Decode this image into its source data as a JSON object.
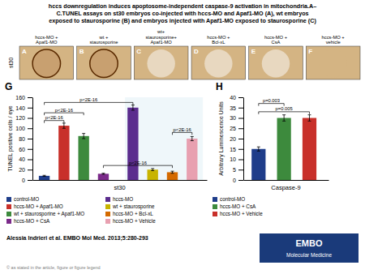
{
  "title": "hccs downregulation induces apoptosome-independent caspase-9 activation in mitochondria.A–\nC.TUNEL assays on st30 embryos co-injected with hccs-MO and Apaf1-MO (A), wt embryos\nexposed to staurosporine (B) and embryos injected with Apaf1-MO exposed to staurosporine (C)",
  "panels": [
    {
      "label": "A",
      "caption": "hccs-MO +\nApaf1-MO"
    },
    {
      "label": "B",
      "caption": "wt +\nstaurosporine"
    },
    {
      "label": "C",
      "caption": "wt+\nstaurosporine+\nApaf1-MO"
    },
    {
      "label": "D",
      "caption": "hccs-MO +\nBcl-xL"
    },
    {
      "label": "E",
      "caption": "hccs-MO +\nCsA"
    },
    {
      "label": "F",
      "caption": "hccs-MO +\nvehicle"
    }
  ],
  "row_label": "st30",
  "citation": "Alessia Indrieri et al. EMBO Mol Med. 2013;5:280-293",
  "footer": "© as stated in the article, figure or figure legend",
  "logo": [
    "EMBO",
    "Molecular Medicine"
  ],
  "chart_data": [
    {
      "type": "bar",
      "title": "G",
      "categories": [
        "control-MO",
        "hccs-MO + Apaf1-MO",
        "wt + staurosporine + Apaf1-MO",
        "hccs-MO + CsA",
        "hccs-MO",
        "wt + staurosporine",
        "hccs-MO + Bcl-xL",
        "hccs-MO + Vehicle"
      ],
      "values": [
        8,
        105,
        85,
        12,
        140,
        20,
        15,
        80
      ],
      "errors": [
        1,
        5,
        5,
        1,
        5,
        2,
        2,
        4
      ],
      "colors": [
        "#1f3d8a",
        "#c8302a",
        "#3d8a3d",
        "#7b2a8a",
        "#5b2d8e",
        "#c8b400",
        "#d46a00",
        "#e8a0b0"
      ],
      "xlabel": "st30",
      "ylabel": "TUNEL positive cells / eye",
      "ylim": [
        0,
        160
      ],
      "yticks": [
        0,
        20,
        40,
        60,
        80,
        100,
        120,
        140,
        160
      ],
      "tick_labels": "y",
      "legend": "bottom",
      "annotations": [
        {
          "text": "p<2E-16",
          "between": [
            0,
            1
          ],
          "y": 115
        },
        {
          "text": "p<2E-16",
          "between": [
            0,
            2
          ],
          "y": 130
        },
        {
          "text": "p<2E-16",
          "between": [
            0,
            4
          ],
          "y": 150
        },
        {
          "text": "p<2E-16",
          "between": [
            3,
            6
          ],
          "y": 28
        },
        {
          "text": "p<2E-16",
          "between": [
            6,
            7
          ],
          "y": 92
        }
      ]
    },
    {
      "type": "bar",
      "title": "H",
      "categories": [
        "control-MO",
        "hccs-MO + CsA",
        "hccs-MO + Vehicle"
      ],
      "values": [
        15,
        30,
        30
      ],
      "errors": [
        1,
        1.5,
        1.5
      ],
      "colors": [
        "#1f3d8a",
        "#3d8a3d",
        "#c8302a"
      ],
      "xlabel": "Caspase-9",
      "ylabel": "Arbitrary Luminescence Units",
      "ylim": [
        0,
        40
      ],
      "yticks": [
        0,
        5,
        10,
        15,
        20,
        25,
        30,
        35,
        40
      ],
      "tick_labels": "y",
      "legend": "bottom",
      "annotations": [
        {
          "text": "p=0.003",
          "between": [
            0,
            1
          ],
          "y": 37
        },
        {
          "text": "p=0.005",
          "between": [
            0,
            2
          ],
          "y": 33
        }
      ]
    }
  ]
}
